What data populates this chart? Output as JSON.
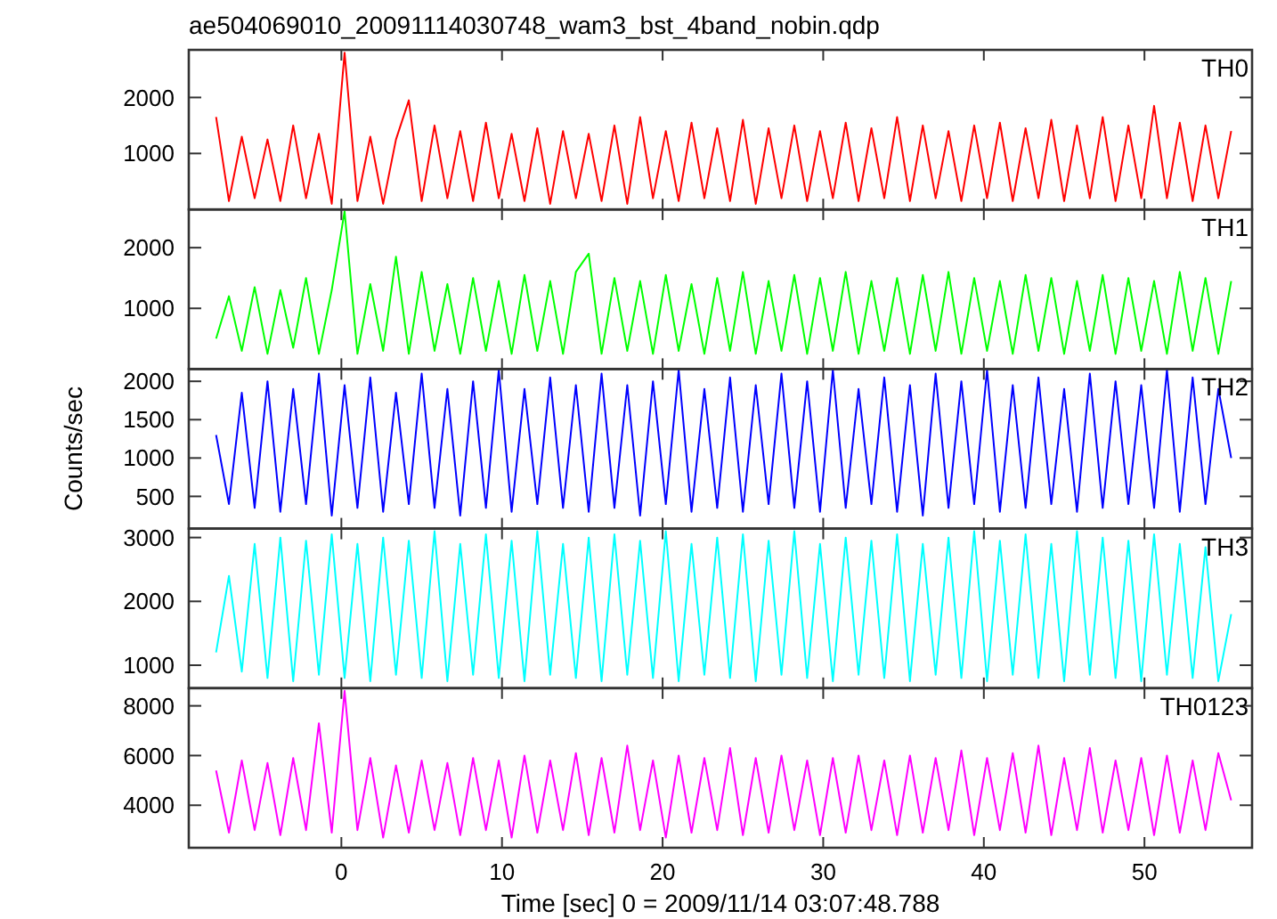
{
  "chart_data": [
    {
      "type": "line",
      "title": "ae504069010_20091114030748_wam3_bst_4band_nobin.qdp",
      "annotations": [
        "TH0"
      ],
      "xlim": [
        -9.5,
        56.7
      ],
      "xticks": [
        0,
        10,
        20,
        30,
        40,
        50
      ],
      "ylim": [
        0,
        2850
      ],
      "yticks": [
        1000,
        2000
      ],
      "tick_labels": "y",
      "x": [
        -7.8,
        -7.0,
        -6.2,
        -5.4,
        -4.6,
        -3.8,
        -3.0,
        -2.2,
        -1.4,
        -0.6,
        0.2,
        1.0,
        1.8,
        2.6,
        3.4,
        4.2,
        5.0,
        5.8,
        6.6,
        7.4,
        8.2,
        9.0,
        9.8,
        10.6,
        11.4,
        12.2,
        13.0,
        13.8,
        14.6,
        15.4,
        16.2,
        17.0,
        17.8,
        18.6,
        19.4,
        20.2,
        21.0,
        21.8,
        22.6,
        23.4,
        24.2,
        25.0,
        25.8,
        26.6,
        27.4,
        28.2,
        29.0,
        29.8,
        30.6,
        31.4,
        32.2,
        33.0,
        33.8,
        34.6,
        35.4,
        36.2,
        37.0,
        37.8,
        38.6,
        39.4,
        40.2,
        41.0,
        41.8,
        42.6,
        43.4,
        44.2,
        45.0,
        45.8,
        46.6,
        47.4,
        48.2,
        49.0,
        49.8,
        50.6,
        51.4,
        52.2,
        53.0,
        53.8,
        54.6,
        55.4
      ],
      "series": [
        {
          "color": "#ff0000",
          "values": [
            1650,
            150,
            1300,
            200,
            1250,
            150,
            1500,
            200,
            1350,
            100,
            2800,
            150,
            1300,
            100,
            1250,
            1950,
            150,
            1500,
            200,
            1400,
            150,
            1550,
            200,
            1350,
            150,
            1450,
            100,
            1400,
            200,
            1350,
            150,
            1500,
            100,
            1650,
            200,
            1400,
            150,
            1550,
            200,
            1450,
            150,
            1600,
            100,
            1450,
            200,
            1500,
            150,
            1400,
            200,
            1550,
            150,
            1450,
            200,
            1650,
            150,
            1500,
            200,
            1400,
            150,
            1500,
            200,
            1550,
            150,
            1450,
            200,
            1600,
            150,
            1500,
            200,
            1650,
            150,
            1500,
            200,
            1850,
            200,
            1550,
            150,
            1500,
            200,
            1400
          ]
        }
      ]
    },
    {
      "type": "line",
      "annotations": [
        "TH1"
      ],
      "xlim": [
        -9.5,
        56.7
      ],
      "xticks": [
        0,
        10,
        20,
        30,
        40,
        50
      ],
      "ylim": [
        0,
        2630
      ],
      "yticks": [
        1000,
        2000
      ],
      "tick_labels": "y",
      "x": [
        -7.8,
        -7.0,
        -6.2,
        -5.4,
        -4.6,
        -3.8,
        -3.0,
        -2.2,
        -1.4,
        -0.6,
        0.2,
        1.0,
        1.8,
        2.6,
        3.4,
        4.2,
        5.0,
        5.8,
        6.6,
        7.4,
        8.2,
        9.0,
        9.8,
        10.6,
        11.4,
        12.2,
        13.0,
        13.8,
        14.6,
        15.4,
        16.2,
        17.0,
        17.8,
        18.6,
        19.4,
        20.2,
        21.0,
        21.8,
        22.6,
        23.4,
        24.2,
        25.0,
        25.8,
        26.6,
        27.4,
        28.2,
        29.0,
        29.8,
        30.6,
        31.4,
        32.2,
        33.0,
        33.8,
        34.6,
        35.4,
        36.2,
        37.0,
        37.8,
        38.6,
        39.4,
        40.2,
        41.0,
        41.8,
        42.6,
        43.4,
        44.2,
        45.0,
        45.8,
        46.6,
        47.4,
        48.2,
        49.0,
        49.8,
        50.6,
        51.4,
        52.2,
        53.0,
        53.8,
        54.6,
        55.4
      ],
      "series": [
        {
          "color": "#00ff00",
          "values": [
            500,
            1200,
            300,
            1350,
            250,
            1300,
            350,
            1500,
            250,
            1300,
            2600,
            250,
            1400,
            300,
            1850,
            250,
            1600,
            300,
            1400,
            250,
            1500,
            300,
            1450,
            250,
            1550,
            300,
            1450,
            250,
            1600,
            1900,
            250,
            1500,
            300,
            1450,
            250,
            1550,
            300,
            1400,
            250,
            1500,
            300,
            1600,
            250,
            1450,
            300,
            1550,
            250,
            1500,
            300,
            1600,
            250,
            1450,
            300,
            1500,
            250,
            1550,
            300,
            1600,
            250,
            1500,
            300,
            1450,
            250,
            1550,
            300,
            1500,
            250,
            1450,
            300,
            1550,
            250,
            1500,
            300,
            1450,
            250,
            1600,
            300,
            1500,
            250,
            1450
          ]
        }
      ]
    },
    {
      "type": "line",
      "ylabel": "Counts/sec",
      "annotations": [
        "TH2"
      ],
      "xlim": [
        -9.5,
        56.7
      ],
      "xticks": [
        0,
        10,
        20,
        30,
        40,
        50
      ],
      "ylim": [
        80,
        2160
      ],
      "yticks": [
        500,
        1000,
        1500,
        2000
      ],
      "tick_labels": "y",
      "x": [
        -7.8,
        -7.0,
        -6.2,
        -5.4,
        -4.6,
        -3.8,
        -3.0,
        -2.2,
        -1.4,
        -0.6,
        0.2,
        1.0,
        1.8,
        2.6,
        3.4,
        4.2,
        5.0,
        5.8,
        6.6,
        7.4,
        8.2,
        9.0,
        9.8,
        10.6,
        11.4,
        12.2,
        13.0,
        13.8,
        14.6,
        15.4,
        16.2,
        17.0,
        17.8,
        18.6,
        19.4,
        20.2,
        21.0,
        21.8,
        22.6,
        23.4,
        24.2,
        25.0,
        25.8,
        26.6,
        27.4,
        28.2,
        29.0,
        29.8,
        30.6,
        31.4,
        32.2,
        33.0,
        33.8,
        34.6,
        35.4,
        36.2,
        37.0,
        37.8,
        38.6,
        39.4,
        40.2,
        41.0,
        41.8,
        42.6,
        43.4,
        44.2,
        45.0,
        45.8,
        46.6,
        47.4,
        48.2,
        49.0,
        49.8,
        50.6,
        51.4,
        52.2,
        53.0,
        53.8,
        54.6,
        55.4
      ],
      "series": [
        {
          "color": "#0000ff",
          "values": [
            1300,
            400,
            1850,
            350,
            2000,
            300,
            1900,
            400,
            2100,
            250,
            1950,
            350,
            2050,
            300,
            1850,
            400,
            2100,
            350,
            1900,
            250,
            2000,
            350,
            2150,
            300,
            1900,
            400,
            2050,
            350,
            1950,
            300,
            2100,
            350,
            1950,
            250,
            2000,
            400,
            2150,
            300,
            1900,
            350,
            2050,
            300,
            1950,
            400,
            2100,
            350,
            2000,
            300,
            2150,
            350,
            1900,
            400,
            2050,
            300,
            1950,
            250,
            2100,
            350,
            2000,
            400,
            2150,
            300,
            1950,
            350,
            2050,
            400,
            1900,
            300,
            2100,
            350,
            2000,
            400,
            1950,
            350,
            2150,
            300,
            2050,
            400,
            1900,
            1000
          ]
        }
      ]
    },
    {
      "type": "line",
      "annotations": [
        "TH3"
      ],
      "xlim": [
        -9.5,
        56.7
      ],
      "xticks": [
        0,
        10,
        20,
        30,
        40,
        50
      ],
      "ylim": [
        640,
        3140
      ],
      "yticks": [
        1000,
        2000,
        3000
      ],
      "tick_labels": "y",
      "x": [
        -7.8,
        -7.0,
        -6.2,
        -5.4,
        -4.6,
        -3.8,
        -3.0,
        -2.2,
        -1.4,
        -0.6,
        0.2,
        1.0,
        1.8,
        2.6,
        3.4,
        4.2,
        5.0,
        5.8,
        6.6,
        7.4,
        8.2,
        9.0,
        9.8,
        10.6,
        11.4,
        12.2,
        13.0,
        13.8,
        14.6,
        15.4,
        16.2,
        17.0,
        17.8,
        18.6,
        19.4,
        20.2,
        21.0,
        21.8,
        22.6,
        23.4,
        24.2,
        25.0,
        25.8,
        26.6,
        27.4,
        28.2,
        29.0,
        29.8,
        30.6,
        31.4,
        32.2,
        33.0,
        33.8,
        34.6,
        35.4,
        36.2,
        37.0,
        37.8,
        38.6,
        39.4,
        40.2,
        41.0,
        41.8,
        42.6,
        43.4,
        44.2,
        45.0,
        45.8,
        46.6,
        47.4,
        48.2,
        49.0,
        49.8,
        50.6,
        51.4,
        52.2,
        53.0,
        53.8,
        54.6,
        55.4
      ],
      "series": [
        {
          "color": "#00ffff",
          "values": [
            1200,
            2400,
            900,
            2900,
            800,
            3000,
            750,
            2950,
            850,
            3050,
            800,
            2900,
            750,
            3000,
            850,
            2950,
            800,
            3100,
            750,
            2900,
            850,
            3050,
            800,
            2950,
            750,
            3100,
            850,
            2900,
            800,
            3000,
            750,
            3050,
            850,
            2950,
            800,
            3100,
            750,
            2900,
            850,
            3000,
            800,
            3050,
            750,
            2950,
            850,
            3100,
            800,
            2900,
            750,
            3000,
            850,
            2950,
            800,
            3050,
            750,
            2900,
            850,
            3000,
            800,
            3100,
            750,
            2950,
            850,
            3050,
            800,
            2900,
            750,
            3100,
            850,
            3000,
            800,
            2950,
            750,
            3050,
            850,
            2900,
            800,
            2850,
            750,
            1800
          ]
        }
      ]
    },
    {
      "type": "line",
      "xlabel": "Time [sec] 0 = 2009/11/14 03:07:48.788",
      "annotations": [
        "TH0123"
      ],
      "xlim": [
        -9.5,
        56.7
      ],
      "xticks": [
        0,
        10,
        20,
        30,
        40,
        50
      ],
      "ylim": [
        2290,
        8710
      ],
      "yticks": [
        4000,
        6000,
        8000
      ],
      "x": [
        -7.8,
        -7.0,
        -6.2,
        -5.4,
        -4.6,
        -3.8,
        -3.0,
        -2.2,
        -1.4,
        -0.6,
        0.2,
        1.0,
        1.8,
        2.6,
        3.4,
        4.2,
        5.0,
        5.8,
        6.6,
        7.4,
        8.2,
        9.0,
        9.8,
        10.6,
        11.4,
        12.2,
        13.0,
        13.8,
        14.6,
        15.4,
        16.2,
        17.0,
        17.8,
        18.6,
        19.4,
        20.2,
        21.0,
        21.8,
        22.6,
        23.4,
        24.2,
        25.0,
        25.8,
        26.6,
        27.4,
        28.2,
        29.0,
        29.8,
        30.6,
        31.4,
        32.2,
        33.0,
        33.8,
        34.6,
        35.4,
        36.2,
        37.0,
        37.8,
        38.6,
        39.4,
        40.2,
        41.0,
        41.8,
        42.6,
        43.4,
        44.2,
        45.0,
        45.8,
        46.6,
        47.4,
        48.2,
        49.0,
        49.8,
        50.6,
        51.4,
        52.2,
        53.0,
        53.8,
        54.6,
        55.4
      ],
      "series": [
        {
          "color": "#ff00ff",
          "values": [
            5400,
            2900,
            5800,
            3000,
            5700,
            2800,
            5900,
            3000,
            7300,
            2900,
            8600,
            3000,
            5900,
            2700,
            5600,
            2900,
            5800,
            3000,
            5700,
            2800,
            5900,
            3000,
            5800,
            2700,
            6000,
            2900,
            5800,
            3000,
            6100,
            2800,
            5900,
            2900,
            6400,
            3000,
            5800,
            2700,
            6000,
            2900,
            5900,
            3000,
            6300,
            2800,
            5900,
            2900,
            6000,
            3000,
            5800,
            2800,
            5900,
            2900,
            6000,
            3000,
            5800,
            2800,
            6000,
            2900,
            5900,
            3000,
            6200,
            2800,
            5900,
            3000,
            6100,
            2900,
            6400,
            2800,
            5900,
            3000,
            6300,
            2900,
            5800,
            3000,
            5900,
            2800,
            6000,
            2900,
            5800,
            3000,
            6100,
            4200
          ]
        }
      ]
    }
  ]
}
